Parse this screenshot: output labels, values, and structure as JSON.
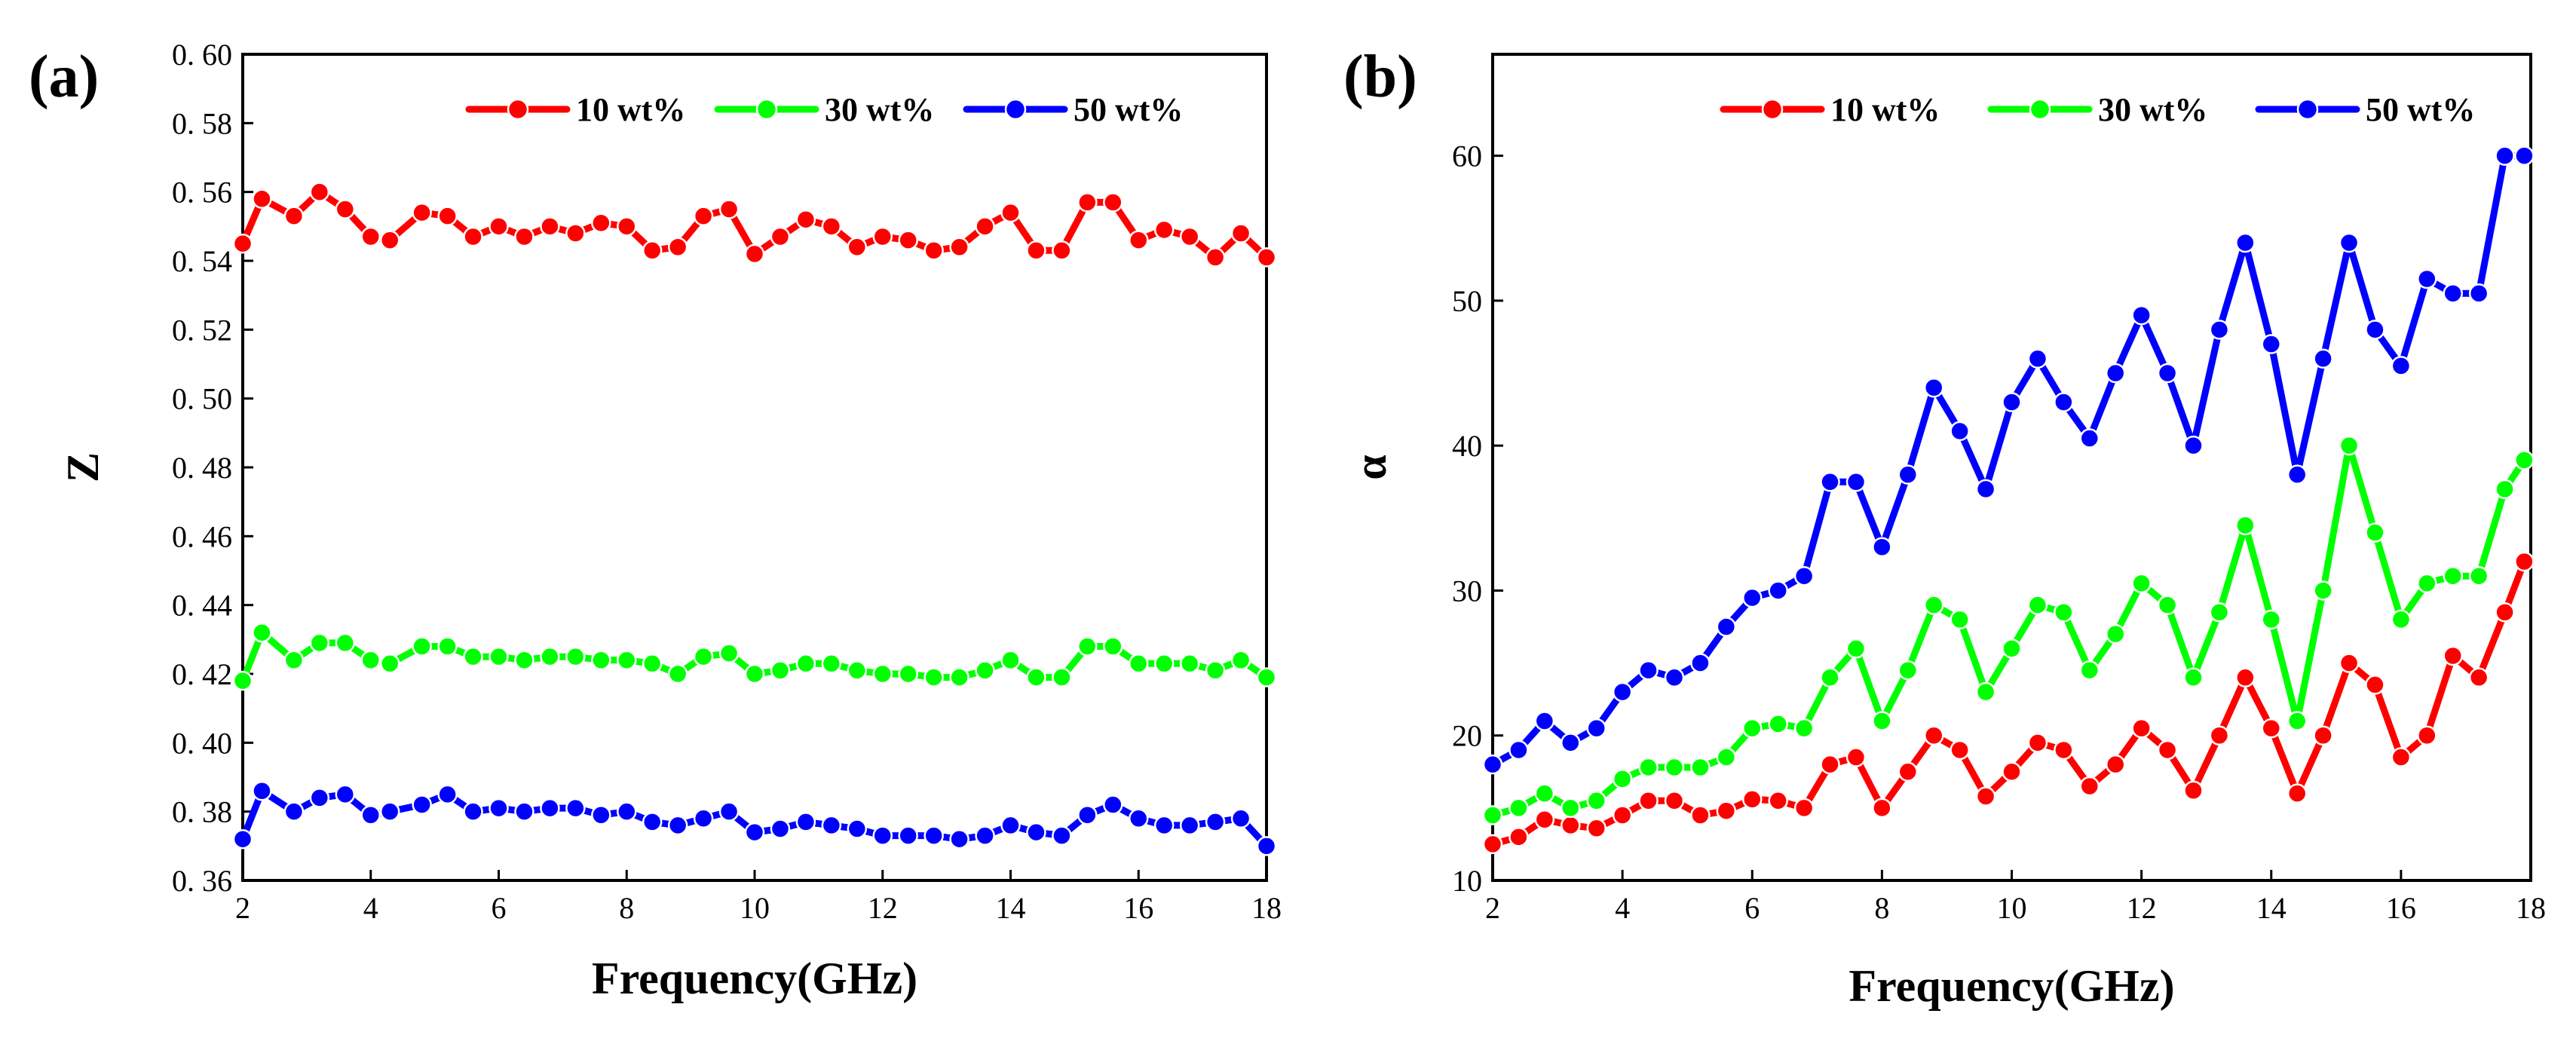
{
  "colors": {
    "s10": "#ff0000",
    "s30": "#00ff00",
    "s50": "#0000ff"
  },
  "chart_data": [
    {
      "type": "line",
      "panel_label": "(a)",
      "xlabel": "Frequency(GHz)",
      "ylabel": "Z",
      "xlim": [
        2,
        18
      ],
      "ylim": [
        0.36,
        0.6
      ],
      "xticks": [
        2,
        4,
        6,
        8,
        10,
        12,
        14,
        16,
        18
      ],
      "xtick_labels": [
        "2",
        "4",
        "6",
        "8",
        "10",
        "12",
        "14",
        "16",
        "18"
      ],
      "yticks": [
        0.36,
        0.38,
        0.4,
        0.42,
        0.44,
        0.46,
        0.48,
        0.5,
        0.52,
        0.54,
        0.56,
        0.58,
        0.6
      ],
      "ytick_labels": [
        "0. 36",
        "0. 38",
        "0. 40",
        "0. 42",
        "0. 44",
        "0. 46",
        "0. 48",
        "0. 50",
        "0. 52",
        "0. 54",
        "0. 56",
        "0. 58",
        "0. 60"
      ],
      "legend_position": "top-right",
      "series": [
        {
          "name": "10 wt%",
          "color": "#ff0000",
          "x": [
            2.0,
            2.3,
            2.8,
            3.2,
            3.6,
            4.0,
            4.3,
            4.8,
            5.2,
            5.6,
            6.0,
            6.4,
            6.8,
            7.2,
            7.6,
            8.0,
            8.4,
            8.8,
            9.2,
            9.6,
            10.0,
            10.4,
            10.8,
            11.2,
            11.6,
            12.0,
            12.4,
            12.8,
            13.2,
            13.6,
            14.0,
            14.4,
            14.8,
            15.2,
            15.6,
            16.0,
            16.4,
            16.8,
            17.2,
            17.6,
            18.0
          ],
          "y": [
            0.545,
            0.558,
            0.553,
            0.56,
            0.555,
            0.547,
            0.546,
            0.554,
            0.553,
            0.547,
            0.55,
            0.547,
            0.55,
            0.548,
            0.551,
            0.55,
            0.543,
            0.544,
            0.553,
            0.555,
            0.542,
            0.547,
            0.552,
            0.55,
            0.544,
            0.547,
            0.546,
            0.543,
            0.544,
            0.55,
            0.554,
            0.543,
            0.543,
            0.557,
            0.557,
            0.546,
            0.549,
            0.547,
            0.541,
            0.548,
            0.541
          ]
        },
        {
          "name": "30 wt%",
          "color": "#00ff00",
          "x": [
            2.0,
            2.3,
            2.8,
            3.2,
            3.6,
            4.0,
            4.3,
            4.8,
            5.2,
            5.6,
            6.0,
            6.4,
            6.8,
            7.2,
            7.6,
            8.0,
            8.4,
            8.8,
            9.2,
            9.6,
            10.0,
            10.4,
            10.8,
            11.2,
            11.6,
            12.0,
            12.4,
            12.8,
            13.2,
            13.6,
            14.0,
            14.4,
            14.8,
            15.2,
            15.6,
            16.0,
            16.4,
            16.8,
            17.2,
            17.6,
            18.0
          ],
          "y": [
            0.418,
            0.432,
            0.424,
            0.429,
            0.429,
            0.424,
            0.423,
            0.428,
            0.428,
            0.425,
            0.425,
            0.424,
            0.425,
            0.425,
            0.424,
            0.424,
            0.423,
            0.42,
            0.425,
            0.426,
            0.42,
            0.421,
            0.423,
            0.423,
            0.421,
            0.42,
            0.42,
            0.419,
            0.419,
            0.421,
            0.424,
            0.419,
            0.419,
            0.428,
            0.428,
            0.423,
            0.423,
            0.423,
            0.421,
            0.424,
            0.419
          ]
        },
        {
          "name": "50 wt%",
          "color": "#0000ff",
          "x": [
            2.0,
            2.3,
            2.8,
            3.2,
            3.6,
            4.0,
            4.3,
            4.8,
            5.2,
            5.6,
            6.0,
            6.4,
            6.8,
            7.2,
            7.6,
            8.0,
            8.4,
            8.8,
            9.2,
            9.6,
            10.0,
            10.4,
            10.8,
            11.2,
            11.6,
            12.0,
            12.4,
            12.8,
            13.2,
            13.6,
            14.0,
            14.4,
            14.8,
            15.2,
            15.6,
            16.0,
            16.4,
            16.8,
            17.2,
            17.6,
            18.0
          ],
          "y": [
            0.372,
            0.386,
            0.38,
            0.384,
            0.385,
            0.379,
            0.38,
            0.382,
            0.385,
            0.38,
            0.381,
            0.38,
            0.381,
            0.381,
            0.379,
            0.38,
            0.377,
            0.376,
            0.378,
            0.38,
            0.374,
            0.375,
            0.377,
            0.376,
            0.375,
            0.373,
            0.373,
            0.373,
            0.372,
            0.373,
            0.376,
            0.374,
            0.373,
            0.379,
            0.382,
            0.378,
            0.376,
            0.376,
            0.377,
            0.378,
            0.37
          ]
        }
      ]
    },
    {
      "type": "line",
      "panel_label": "(b)",
      "xlabel": "Frequency(GHz)",
      "ylabel": "α",
      "xlim": [
        2,
        18
      ],
      "ylim": [
        10,
        67
      ],
      "xticks": [
        2,
        4,
        6,
        8,
        10,
        12,
        14,
        16,
        18
      ],
      "xtick_labels": [
        "2",
        "4",
        "6",
        "8",
        "10",
        "12",
        "14",
        "16",
        "18"
      ],
      "yticks": [
        10,
        20,
        30,
        40,
        50,
        60
      ],
      "ytick_labels": [
        "10",
        "20",
        "30",
        "40",
        "50",
        "60"
      ],
      "legend_position": "top-right",
      "series": [
        {
          "name": "10 wt%",
          "color": "#ff0000",
          "x": [
            2.0,
            2.4,
            2.8,
            3.2,
            3.6,
            4.0,
            4.4,
            4.8,
            5.2,
            5.6,
            6.0,
            6.4,
            6.8,
            7.2,
            7.6,
            8.0,
            8.4,
            8.8,
            9.2,
            9.6,
            10.0,
            10.4,
            10.8,
            11.2,
            11.6,
            12.0,
            12.4,
            12.8,
            13.2,
            13.6,
            14.0,
            14.4,
            14.8,
            15.2,
            15.6,
            16.0,
            16.4,
            16.8,
            17.2,
            17.6,
            17.9
          ],
          "y": [
            12.5,
            13.0,
            14.2,
            13.8,
            13.6,
            14.5,
            15.5,
            15.5,
            14.5,
            14.8,
            15.6,
            15.5,
            15.0,
            18.0,
            18.5,
            15.0,
            17.5,
            20.0,
            19.0,
            15.8,
            17.5,
            19.5,
            19.0,
            16.5,
            18.0,
            20.5,
            19.0,
            16.2,
            20.0,
            24.0,
            20.5,
            16.0,
            20.0,
            25.0,
            23.5,
            18.5,
            20.0,
            25.5,
            24.0,
            28.5,
            32.0
          ]
        },
        {
          "name": "30 wt%",
          "color": "#00ff00",
          "x": [
            2.0,
            2.4,
            2.8,
            3.2,
            3.6,
            4.0,
            4.4,
            4.8,
            5.2,
            5.6,
            6.0,
            6.4,
            6.8,
            7.2,
            7.6,
            8.0,
            8.4,
            8.8,
            9.2,
            9.6,
            10.0,
            10.4,
            10.8,
            11.2,
            11.6,
            12.0,
            12.4,
            12.8,
            13.2,
            13.6,
            14.0,
            14.4,
            14.8,
            15.2,
            15.6,
            16.0,
            16.4,
            16.8,
            17.2,
            17.6,
            17.9
          ],
          "y": [
            14.5,
            15.0,
            16.0,
            15.0,
            15.5,
            17.0,
            17.8,
            17.8,
            17.8,
            18.5,
            20.5,
            20.8,
            20.5,
            24.0,
            26.0,
            21.0,
            24.5,
            29.0,
            28.0,
            23.0,
            26.0,
            29.0,
            28.5,
            24.5,
            27.0,
            30.5,
            29.0,
            24.0,
            28.5,
            34.5,
            28.0,
            21.0,
            30.0,
            40.0,
            34.0,
            28.0,
            30.5,
            31.0,
            31.0,
            37.0,
            39.0
          ]
        },
        {
          "name": "50 wt%",
          "color": "#0000ff",
          "x": [
            2.0,
            2.4,
            2.8,
            3.2,
            3.6,
            4.0,
            4.4,
            4.8,
            5.2,
            5.6,
            6.0,
            6.4,
            6.8,
            7.2,
            7.6,
            8.0,
            8.4,
            8.8,
            9.2,
            9.6,
            10.0,
            10.4,
            10.8,
            11.2,
            11.6,
            12.0,
            12.4,
            12.8,
            13.2,
            13.6,
            14.0,
            14.4,
            14.8,
            15.2,
            15.6,
            16.0,
            16.4,
            16.8,
            17.2,
            17.6,
            17.9
          ],
          "y": [
            18.0,
            19.0,
            21.0,
            19.5,
            20.5,
            23.0,
            24.5,
            24.0,
            25.0,
            27.5,
            29.5,
            30.0,
            31.0,
            37.5,
            37.5,
            33.0,
            38.0,
            44.0,
            41.0,
            37.0,
            43.0,
            46.0,
            43.0,
            40.5,
            45.0,
            49.0,
            45.0,
            40.0,
            48.0,
            54.0,
            47.0,
            38.0,
            46.0,
            54.0,
            48.0,
            45.5,
            51.5,
            50.5,
            50.5,
            60.0,
            60.0
          ]
        }
      ]
    }
  ]
}
